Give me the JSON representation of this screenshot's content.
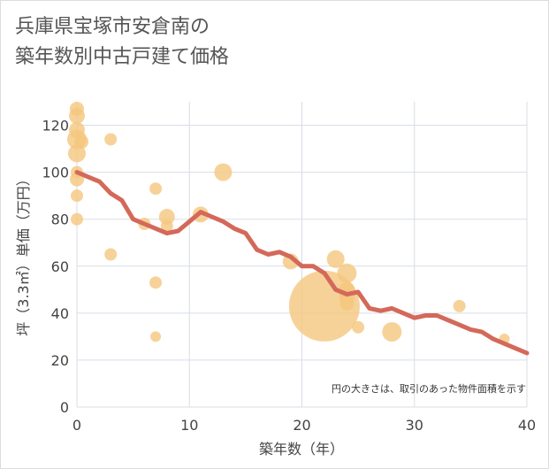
{
  "chart_data": {
    "type": "scatter",
    "title_line1": "兵庫県宝塚市安倉南の",
    "title_line2": "築年数別中古戸建て価格",
    "xlabel": "築年数（年）",
    "ylabel": "坪（3.3㎡）単価（万円）",
    "note": "円の大きさは、取引のあった物件面積を示す",
    "xlim": [
      0,
      40
    ],
    "ylim": [
      0,
      130
    ],
    "x_ticks": [
      0,
      10,
      20,
      30,
      40
    ],
    "y_ticks": [
      0,
      20,
      40,
      60,
      80,
      100,
      120
    ],
    "grid": true,
    "colors": {
      "points": "#f5c77e",
      "line": "#d4695a",
      "grid": "#d8dde6"
    },
    "points": [
      {
        "x": 0,
        "y": 127,
        "s": 8
      },
      {
        "x": 0,
        "y": 124,
        "s": 9
      },
      {
        "x": 0,
        "y": 118,
        "s": 9
      },
      {
        "x": 0,
        "y": 114,
        "s": 11
      },
      {
        "x": 0.4,
        "y": 113,
        "s": 8
      },
      {
        "x": 0,
        "y": 108,
        "s": 10
      },
      {
        "x": 0,
        "y": 100,
        "s": 7
      },
      {
        "x": 0,
        "y": 97,
        "s": 8
      },
      {
        "x": 0,
        "y": 90,
        "s": 7
      },
      {
        "x": 0,
        "y": 80,
        "s": 7
      },
      {
        "x": 3,
        "y": 114,
        "s": 7
      },
      {
        "x": 3,
        "y": 65,
        "s": 7
      },
      {
        "x": 6,
        "y": 78,
        "s": 7
      },
      {
        "x": 7,
        "y": 93,
        "s": 7
      },
      {
        "x": 7,
        "y": 53,
        "s": 7
      },
      {
        "x": 7,
        "y": 30,
        "s": 6
      },
      {
        "x": 8,
        "y": 81,
        "s": 9
      },
      {
        "x": 8,
        "y": 77,
        "s": 7
      },
      {
        "x": 11,
        "y": 82,
        "s": 9
      },
      {
        "x": 13,
        "y": 100,
        "s": 10
      },
      {
        "x": 19,
        "y": 62,
        "s": 9
      },
      {
        "x": 22,
        "y": 43,
        "s": 40
      },
      {
        "x": 23,
        "y": 63,
        "s": 10
      },
      {
        "x": 24,
        "y": 57,
        "s": 11
      },
      {
        "x": 24,
        "y": 50,
        "s": 9
      },
      {
        "x": 24,
        "y": 47,
        "s": 9
      },
      {
        "x": 24,
        "y": 44,
        "s": 8
      },
      {
        "x": 25,
        "y": 34,
        "s": 7
      },
      {
        "x": 28,
        "y": 32,
        "s": 11
      },
      {
        "x": 34,
        "y": 43,
        "s": 7
      },
      {
        "x": 38,
        "y": 29,
        "s": 6
      }
    ],
    "trend": {
      "x": [
        0,
        1,
        2,
        3,
        4,
        5,
        6,
        7,
        8,
        9,
        10,
        11,
        12,
        13,
        14,
        15,
        16,
        17,
        18,
        19,
        20,
        21,
        22,
        23,
        24,
        25,
        26,
        27,
        28,
        29,
        30,
        31,
        32,
        33,
        34,
        35,
        36,
        37,
        38,
        39,
        40
      ],
      "y": [
        100,
        98,
        96,
        91,
        88,
        80,
        78,
        76,
        74,
        75,
        79,
        83,
        81,
        79,
        76,
        74,
        67,
        65,
        66,
        64,
        60,
        60,
        57,
        50,
        48,
        49,
        42,
        41,
        42,
        40,
        38,
        39,
        39,
        37,
        35,
        33,
        32,
        29,
        27,
        25,
        23
      ]
    }
  }
}
